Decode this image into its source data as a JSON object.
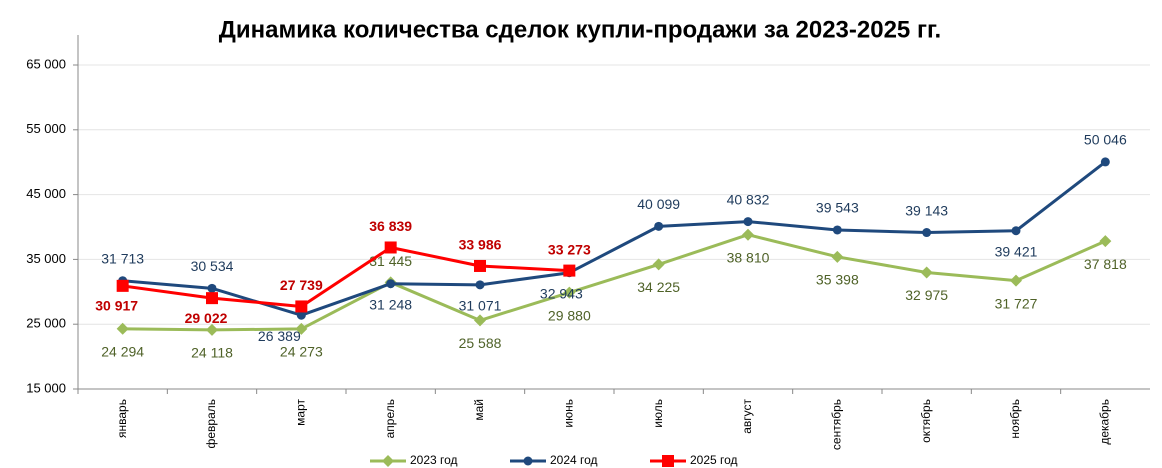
{
  "chart_data": {
    "type": "line",
    "title": "Динамика количества сделок купли-продажи за 2023-2025 гг.",
    "categories": [
      "январь",
      "февраль",
      "март",
      "апрель",
      "май",
      "июнь",
      "июль",
      "август",
      "сентябрь",
      "октябрь",
      "ноябрь",
      "декабрь"
    ],
    "ylim": [
      15000,
      65000
    ],
    "yticks": [
      {
        "value": 15000,
        "label": "15 000"
      },
      {
        "value": 25000,
        "label": "25 000"
      },
      {
        "value": 35000,
        "label": "35 000"
      },
      {
        "value": 45000,
        "label": "45 000"
      },
      {
        "value": 55000,
        "label": "55 000"
      },
      {
        "value": 65000,
        "label": "65 000"
      }
    ],
    "grid": true,
    "legend": "bottom",
    "series": [
      {
        "name": "2023 год",
        "color": "#9bbb59",
        "marker": "diamond",
        "values": [
          24294,
          24118,
          24273,
          31445,
          25588,
          29880,
          34225,
          38810,
          35398,
          32975,
          31727,
          37818
        ],
        "value_labels": [
          "24 294",
          "24 118",
          "24 273",
          "31 445",
          "25 588",
          "29 880",
          "34 225",
          "38 810",
          "35 398",
          "32 975",
          "31 727",
          "37 818"
        ]
      },
      {
        "name": "2024 год",
        "color": "#1f497d",
        "marker": "circle",
        "values": [
          31713,
          30534,
          26389,
          31248,
          31071,
          32943,
          40099,
          40832,
          39543,
          39143,
          39421,
          50046
        ],
        "value_labels": [
          "31 713",
          "30 534",
          "26 389",
          "31 248",
          "31 071",
          "32 943",
          "40 099",
          "40 832",
          "39 543",
          "39 143",
          "39 421",
          "50 046"
        ]
      },
      {
        "name": "2025 год",
        "color": "#ff0000",
        "marker": "square",
        "values": [
          30917,
          29022,
          27739,
          36839,
          33986,
          33273,
          null,
          null,
          null,
          null,
          null,
          null
        ],
        "value_labels": [
          "30 917",
          "29 022",
          "27 739",
          "36 839",
          "33 986",
          "33 273",
          null,
          null,
          null,
          null,
          null,
          null
        ]
      }
    ]
  }
}
